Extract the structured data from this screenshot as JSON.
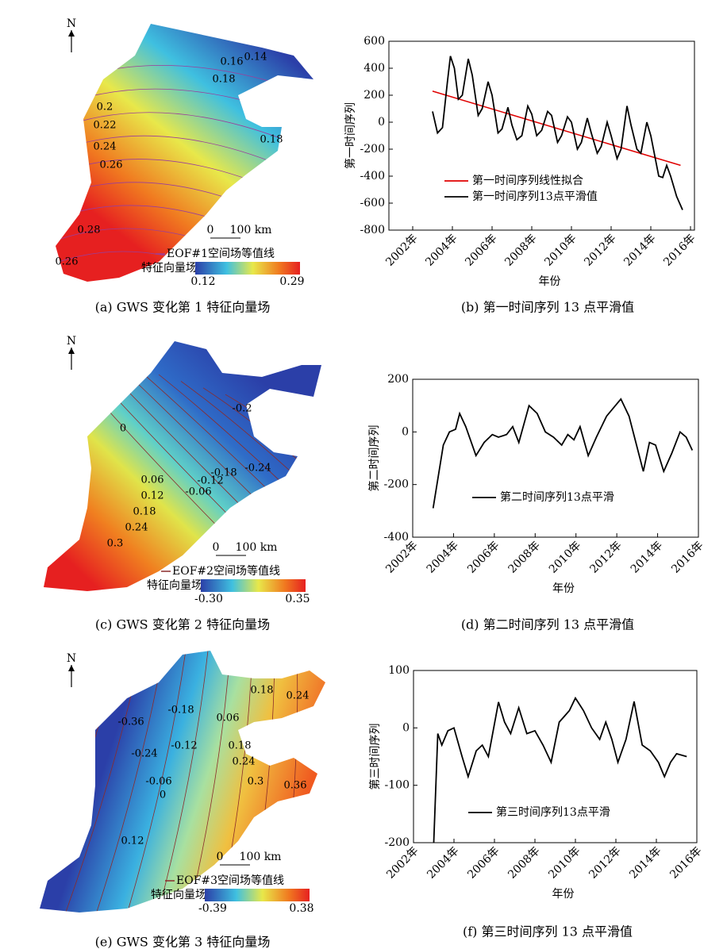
{
  "maps": [
    {
      "north": "N",
      "scale_labels": [
        "0",
        "100 km"
      ],
      "legend": "EOF#1空间场等值线",
      "colorbar_title": "特征向量场",
      "colorbar_min": "0.12",
      "colorbar_max": "0.29",
      "contour_labels": [
        "0.14",
        "0.16",
        "0.18",
        "0.2",
        "0.22",
        "0.24",
        "0.26",
        "0.28",
        "0.26",
        "0.18"
      ],
      "caption": "(a) GWS 变化第 1 特征向量场"
    },
    {
      "north": "N",
      "scale_labels": [
        "0",
        "100 km"
      ],
      "legend": "EOF#2空间场等值线",
      "colorbar_title": "特征向量场",
      "colorbar_min": "-0.30",
      "colorbar_max": "0.35",
      "contour_labels": [
        "-0.2",
        "-0.24",
        "-0.18",
        "-0.12",
        "-0.06",
        "0",
        "0.06",
        "0.12",
        "0.18",
        "0.24",
        "0.3"
      ],
      "caption": "(c) GWS 变化第 2 特征向量场"
    },
    {
      "north": "N",
      "scale_labels": [
        "0",
        "100 km"
      ],
      "legend": "EOF#3空间场等值线",
      "colorbar_title": "特征向量场",
      "colorbar_min": "-0.39",
      "colorbar_max": "0.38",
      "contour_labels": [
        "-0.36",
        "-0.18",
        "0.06",
        "0.18",
        "0.24",
        "-0.24",
        "-0.12",
        "-0.06",
        "0",
        "0.12",
        "0.18",
        "0.24",
        "0.3",
        "0.36"
      ],
      "caption": "(e) GWS 变化第 3 特征向量场"
    }
  ],
  "chart_data": [
    {
      "type": "line",
      "ylabel": "第一时间序列",
      "xlabel": "年份",
      "caption": "(b) 第一时间序列 13 点平滑值",
      "xlim": [
        2000.8,
        2016.2
      ],
      "ylim": [
        -800,
        600
      ],
      "xticks": [
        {
          "value": 2002,
          "label": "2002年"
        },
        {
          "value": 2004,
          "label": "2004年"
        },
        {
          "value": 2006,
          "label": "2006年"
        },
        {
          "value": 2008,
          "label": "2008年"
        },
        {
          "value": 2010,
          "label": "2010年"
        },
        {
          "value": 2012,
          "label": "2012年"
        },
        {
          "value": 2014,
          "label": "2014年"
        },
        {
          "value": 2016,
          "label": "2016年"
        }
      ],
      "yticks": [
        -800,
        -600,
        -400,
        -200,
        0,
        200,
        400,
        600
      ],
      "series": [
        {
          "name": "第一时间序列线性拟合",
          "color": "#e00000",
          "x": [
            2003.0,
            2015.5
          ],
          "values": [
            230,
            -320
          ]
        },
        {
          "name": "第一时间序列13点平滑值",
          "color": "#000000",
          "x": [
            2003.0,
            2003.25,
            2003.5,
            2003.75,
            2003.9,
            2004.1,
            2004.3,
            2004.5,
            2004.8,
            2005.0,
            2005.3,
            2005.5,
            2005.8,
            2006.0,
            2006.3,
            2006.5,
            2006.8,
            2007.0,
            2007.25,
            2007.5,
            2007.8,
            2008.0,
            2008.25,
            2008.5,
            2008.8,
            2009.0,
            2009.3,
            2009.5,
            2009.8,
            2010.0,
            2010.3,
            2010.5,
            2010.8,
            2011.0,
            2011.3,
            2011.5,
            2011.8,
            2012.0,
            2012.3,
            2012.5,
            2012.8,
            2013.0,
            2013.3,
            2013.5,
            2013.8,
            2014.0,
            2014.4,
            2014.6,
            2014.8,
            2015.0,
            2015.3,
            2015.6
          ],
          "values": [
            80,
            -80,
            -40,
            300,
            490,
            400,
            170,
            200,
            470,
            350,
            50,
            100,
            300,
            200,
            -80,
            -50,
            110,
            -20,
            -130,
            -100,
            120,
            60,
            -100,
            -60,
            80,
            50,
            -150,
            -100,
            40,
            0,
            -200,
            -150,
            30,
            -80,
            -230,
            -180,
            0,
            -100,
            -270,
            -200,
            120,
            -20,
            -200,
            -230,
            0,
            -100,
            -400,
            -410,
            -320,
            -400,
            -550,
            -650
          ]
        }
      ],
      "legend": "lower-left"
    },
    {
      "type": "line",
      "ylabel": "第二时间序列",
      "xlabel": "年份",
      "caption": "(d) 第二时间序列 13 点平滑值",
      "xlim": [
        2002,
        2016
      ],
      "ylim": [
        -400,
        200
      ],
      "xticks": [
        {
          "value": 2002,
          "label": "2002年"
        },
        {
          "value": 2004,
          "label": "2004年"
        },
        {
          "value": 2006,
          "label": "2006年"
        },
        {
          "value": 2008,
          "label": "2008年"
        },
        {
          "value": 2010,
          "label": "2010年"
        },
        {
          "value": 2012,
          "label": "2012年"
        },
        {
          "value": 2014,
          "label": "2014年"
        },
        {
          "value": 2016,
          "label": "2016年"
        }
      ],
      "yticks": [
        -400,
        -200,
        0,
        200
      ],
      "series": [
        {
          "name": "第二时间序列13点平滑",
          "color": "#000000",
          "x": [
            2003.0,
            2003.5,
            2003.8,
            2004.1,
            2004.3,
            2004.6,
            2005.1,
            2005.5,
            2005.9,
            2006.2,
            2006.6,
            2006.9,
            2007.2,
            2007.7,
            2008.1,
            2008.5,
            2008.9,
            2009.3,
            2009.6,
            2009.9,
            2010.2,
            2010.6,
            2011.0,
            2011.5,
            2012.2,
            2012.6,
            2012.9,
            2013.3,
            2013.6,
            2013.9,
            2014.3,
            2014.7,
            2015.1,
            2015.4,
            2015.7
          ],
          "values": [
            -290,
            -50,
            0,
            10,
            70,
            20,
            -90,
            -40,
            -10,
            -20,
            -10,
            20,
            -40,
            100,
            70,
            0,
            -20,
            -50,
            -10,
            -30,
            20,
            -90,
            -20,
            60,
            125,
            60,
            -30,
            -150,
            -40,
            -50,
            -150,
            -80,
            0,
            -20,
            -70
          ]
        }
      ],
      "legend": "center"
    },
    {
      "type": "line",
      "ylabel": "第三时间序列",
      "xlabel": "年份",
      "caption": "(f) 第三时间序列 13 点平滑值",
      "xlim": [
        2002,
        2016
      ],
      "ylim": [
        -200,
        100
      ],
      "xticks": [
        {
          "value": 2002,
          "label": "2002年"
        },
        {
          "value": 2004,
          "label": "2004年"
        },
        {
          "value": 2006,
          "label": "2006年"
        },
        {
          "value": 2008,
          "label": "2008年"
        },
        {
          "value": 2010,
          "label": "2010年"
        },
        {
          "value": 2012,
          "label": "2012年"
        },
        {
          "value": 2014,
          "label": "2014年"
        },
        {
          "value": 2016,
          "label": "2016年"
        }
      ],
      "yticks": [
        -200,
        -100,
        0,
        100
      ],
      "series": [
        {
          "name": "第三时间序列13点平滑",
          "color": "#000000",
          "x": [
            2003.0,
            2003.2,
            2003.4,
            2003.7,
            2004.0,
            2004.4,
            2004.7,
            2005.1,
            2005.4,
            2005.7,
            2006.2,
            2006.5,
            2006.8,
            2007.2,
            2007.6,
            2008.0,
            2008.4,
            2008.8,
            2009.2,
            2009.7,
            2010.0,
            2010.4,
            2010.8,
            2011.2,
            2011.5,
            2011.8,
            2012.1,
            2012.5,
            2012.9,
            2013.3,
            2013.7,
            2014.1,
            2014.4,
            2014.7,
            2015.0,
            2015.5
          ],
          "values": [
            -200,
            -10,
            -30,
            -5,
            0,
            -50,
            -85,
            -40,
            -30,
            -50,
            45,
            10,
            -10,
            35,
            -10,
            -5,
            -30,
            -60,
            10,
            30,
            52,
            30,
            0,
            -20,
            10,
            -20,
            -60,
            -20,
            46,
            -30,
            -40,
            -60,
            -85,
            -60,
            -45,
            -50
          ]
        }
      ],
      "legend": "center"
    }
  ]
}
